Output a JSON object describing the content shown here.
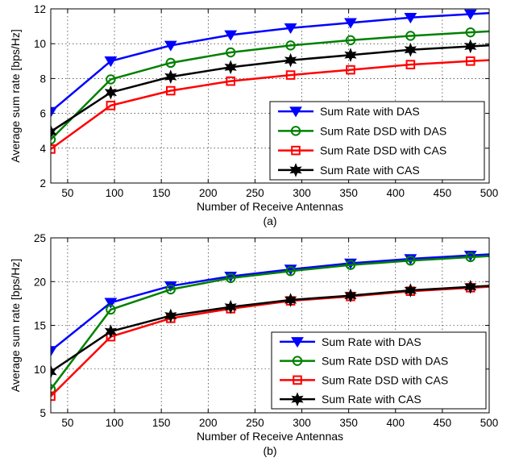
{
  "chart_data": [
    {
      "type": "line",
      "caption": "(a)",
      "xlabel": "Number of Receive Antennas",
      "ylabel": "Average sum rate [bps/Hz]",
      "xlim": [
        32,
        500
      ],
      "ylim": [
        2,
        12
      ],
      "xticks": [
        50,
        100,
        150,
        200,
        250,
        300,
        350,
        400,
        450,
        500
      ],
      "yticks": [
        2,
        4,
        6,
        8,
        10,
        12
      ],
      "grid": true,
      "legend_position": "bottom-right",
      "x": [
        32,
        96,
        160,
        224,
        288,
        352,
        416,
        480
      ],
      "series": [
        {
          "name": "Sum Rate with DAS",
          "color": "#0000ff",
          "marker": "triangle-down",
          "values": [
            6.1,
            9.0,
            9.9,
            10.5,
            10.9,
            11.2,
            11.5,
            11.7
          ]
        },
        {
          "name": "Sum Rate DSD with DAS",
          "color": "#008000",
          "marker": "circle",
          "values": [
            4.5,
            7.95,
            8.9,
            9.5,
            9.9,
            10.2,
            10.45,
            10.65
          ]
        },
        {
          "name": "Sum Rate DSD with CAS",
          "color": "#ff0000",
          "marker": "square",
          "values": [
            3.95,
            6.45,
            7.3,
            7.85,
            8.2,
            8.5,
            8.8,
            9.0
          ]
        },
        {
          "name": "Sum Rate with CAS",
          "color": "#000000",
          "marker": "hexagram",
          "values": [
            4.95,
            7.2,
            8.1,
            8.65,
            9.05,
            9.35,
            9.65,
            9.85
          ]
        }
      ]
    },
    {
      "type": "line",
      "caption": "(b)",
      "xlabel": "Number of Receive Antennas",
      "ylabel": "Average sum rate [bps/Hz]",
      "xlim": [
        32,
        500
      ],
      "ylim": [
        5,
        25
      ],
      "xticks": [
        50,
        100,
        150,
        200,
        250,
        300,
        350,
        400,
        450,
        500
      ],
      "yticks": [
        5,
        10,
        15,
        20,
        25
      ],
      "grid": true,
      "legend_position": "bottom-right",
      "x": [
        32,
        96,
        160,
        224,
        288,
        352,
        416,
        480
      ],
      "series": [
        {
          "name": "Sum Rate with DAS",
          "color": "#0000ff",
          "marker": "triangle-down",
          "values": [
            12.1,
            17.6,
            19.5,
            20.6,
            21.4,
            22.1,
            22.6,
            23.0
          ]
        },
        {
          "name": "Sum Rate DSD with DAS",
          "color": "#008000",
          "marker": "circle",
          "values": [
            7.7,
            16.8,
            19.1,
            20.4,
            21.2,
            21.9,
            22.4,
            22.8
          ]
        },
        {
          "name": "Sum Rate DSD with CAS",
          "color": "#ff0000",
          "marker": "square",
          "values": [
            6.9,
            13.7,
            15.8,
            16.9,
            17.8,
            18.3,
            18.9,
            19.3
          ]
        },
        {
          "name": "Sum Rate with CAS",
          "color": "#000000",
          "marker": "hexagram",
          "values": [
            9.7,
            14.3,
            16.1,
            17.1,
            17.9,
            18.4,
            19.0,
            19.4
          ]
        }
      ]
    }
  ]
}
